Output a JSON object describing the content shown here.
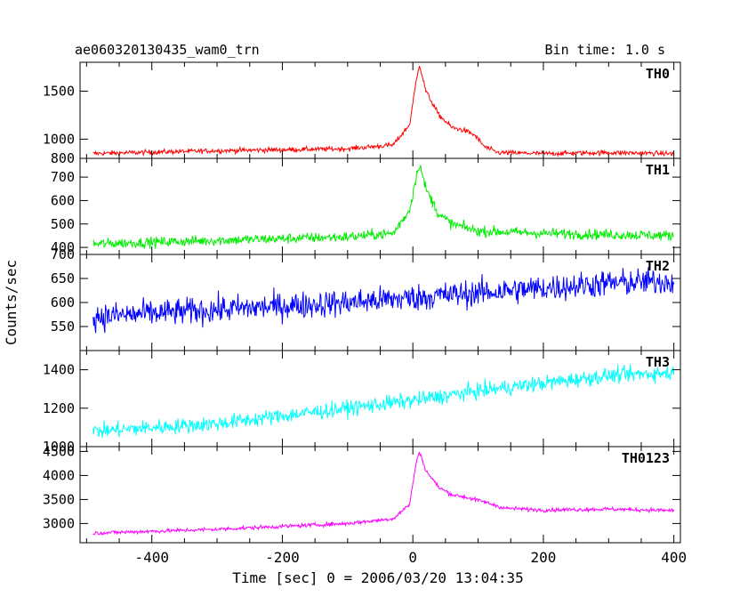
{
  "header": {
    "title": "ae060320130435_wam0_trn",
    "bin_time": "Bin time: 1.0 s"
  },
  "chart_data": {
    "type": "line",
    "xlabel": "Time [sec] 0 = 2006/03/20 13:04:35",
    "ylabel": "Counts/sec",
    "xlim": [
      -510,
      410
    ],
    "xticks": [
      -400,
      -200,
      0,
      200,
      400
    ],
    "xtick_labels": [
      "-400",
      "-200",
      "0",
      "200",
      "400"
    ],
    "grid": false,
    "panels": [
      {
        "label": "TH0",
        "color": "#ff0000",
        "ylim": [
          800,
          1800
        ],
        "yticks": [
          800,
          1000,
          1500
        ],
        "ytick_labels": [
          "800",
          "1000",
          "1500"
        ],
        "noise": 25,
        "shape": [
          [
            -490,
            850
          ],
          [
            -300,
            880
          ],
          [
            -100,
            900
          ],
          [
            -30,
            940
          ],
          [
            -5,
            1150
          ],
          [
            5,
            1600
          ],
          [
            10,
            1780
          ],
          [
            20,
            1500
          ],
          [
            40,
            1250
          ],
          [
            60,
            1120
          ],
          [
            80,
            1090
          ],
          [
            95,
            1040
          ],
          [
            110,
            920
          ],
          [
            130,
            860
          ],
          [
            200,
            850
          ],
          [
            300,
            860
          ],
          [
            400,
            850
          ]
        ]
      },
      {
        "label": "TH1",
        "color": "#00ee00",
        "ylim": [
          370,
          780
        ],
        "yticks": [
          400,
          500,
          600,
          700
        ],
        "ytick_labels": [
          "400",
          "500",
          "600",
          "700"
        ],
        "noise": 22,
        "shape": [
          [
            -490,
            415
          ],
          [
            -300,
            430
          ],
          [
            -100,
            445
          ],
          [
            -30,
            460
          ],
          [
            -5,
            560
          ],
          [
            5,
            700
          ],
          [
            10,
            760
          ],
          [
            20,
            650
          ],
          [
            40,
            540
          ],
          [
            60,
            500
          ],
          [
            100,
            470
          ],
          [
            200,
            460
          ],
          [
            300,
            455
          ],
          [
            400,
            450
          ]
        ]
      },
      {
        "label": "TH2",
        "color": "#0000ff",
        "ylim": [
          500,
          700
        ],
        "yticks": [
          550,
          600,
          650,
          700
        ],
        "ytick_labels": [
          "550",
          "600",
          "650",
          "700"
        ],
        "noise": 28,
        "shape": [
          [
            -490,
            570
          ],
          [
            -300,
            585
          ],
          [
            -100,
            600
          ],
          [
            0,
            610
          ],
          [
            100,
            620
          ],
          [
            200,
            630
          ],
          [
            300,
            640
          ],
          [
            400,
            645
          ]
        ]
      },
      {
        "label": "TH3",
        "color": "#00ffff",
        "ylim": [
          1000,
          1500
        ],
        "yticks": [
          1000,
          1200,
          1400
        ],
        "ytick_labels": [
          "1000",
          "1200",
          "1400"
        ],
        "noise": 40,
        "shape": [
          [
            -490,
            1080
          ],
          [
            -300,
            1120
          ],
          [
            -100,
            1200
          ],
          [
            0,
            1240
          ],
          [
            100,
            1290
          ],
          [
            200,
            1330
          ],
          [
            300,
            1370
          ],
          [
            400,
            1385
          ]
        ]
      },
      {
        "label": "TH0123",
        "color": "#ff00ff",
        "ylim": [
          2600,
          4600
        ],
        "yticks": [
          3000,
          3500,
          4000,
          4500
        ],
        "ytick_labels": [
          "3000",
          "3500",
          "4000",
          "4500"
        ],
        "noise": 40,
        "shape": [
          [
            -490,
            2800
          ],
          [
            -300,
            2880
          ],
          [
            -100,
            3000
          ],
          [
            -30,
            3100
          ],
          [
            -5,
            3400
          ],
          [
            5,
            4250
          ],
          [
            10,
            4500
          ],
          [
            20,
            4100
          ],
          [
            40,
            3750
          ],
          [
            60,
            3600
          ],
          [
            80,
            3550
          ],
          [
            110,
            3450
          ],
          [
            140,
            3320
          ],
          [
            200,
            3280
          ],
          [
            300,
            3300
          ],
          [
            400,
            3270
          ]
        ]
      }
    ]
  }
}
